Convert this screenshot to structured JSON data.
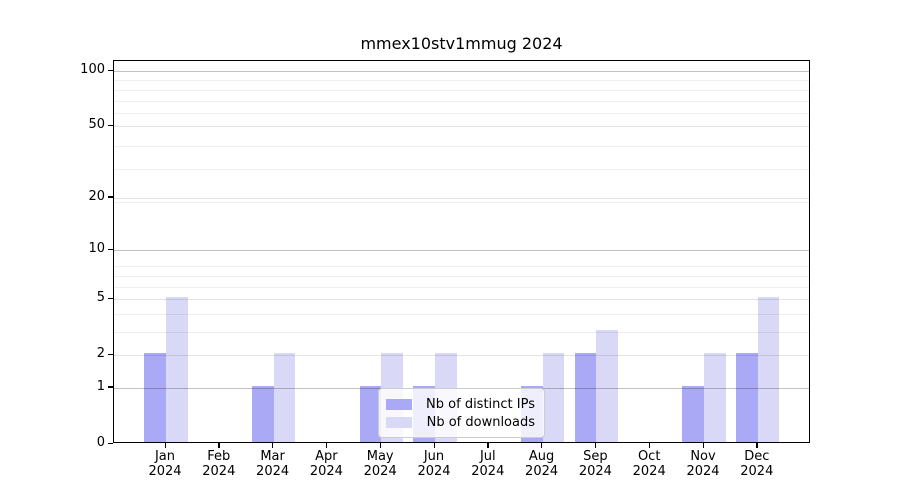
{
  "chart_data": {
    "type": "bar",
    "title": "mmex10stv1mmug 2024",
    "categories": [
      "Jan",
      "Feb",
      "Mar",
      "Apr",
      "May",
      "Jun",
      "Jul",
      "Aug",
      "Sep",
      "Oct",
      "Nov",
      "Dec"
    ],
    "year": "2024",
    "series": [
      {
        "name": "Nb of distinct IPs",
        "color": "#a9a9f5",
        "values": [
          2,
          0,
          1,
          0,
          1,
          1,
          0,
          1,
          2,
          0,
          1,
          2
        ]
      },
      {
        "name": "Nb of downloads",
        "color": "#d9d9f7",
        "values": [
          5,
          0,
          2,
          0,
          2,
          2,
          0,
          2,
          3,
          0,
          2,
          5
        ]
      }
    ],
    "yscale": "log1p",
    "ylim": [
      0,
      110
    ],
    "y_ticks": [
      0,
      1,
      2,
      5,
      10,
      20,
      50,
      100
    ],
    "y_major_gridlines": [
      1,
      10,
      100
    ],
    "y_mid_gridlines": [
      2,
      5,
      20,
      50
    ],
    "y_minor_gridlines": [
      3,
      4,
      6,
      7,
      8,
      19,
      29,
      39,
      59,
      69,
      79,
      89
    ],
    "grid": true,
    "legend_position": "lower-center"
  },
  "colors": {
    "background": "#ffffff",
    "spine": "#000000",
    "major_grid": "rgba(0,0,0,0.24)",
    "mid_grid": "rgba(0,0,0,0.11)",
    "minor_grid": "rgba(0,0,0,0.065)"
  }
}
